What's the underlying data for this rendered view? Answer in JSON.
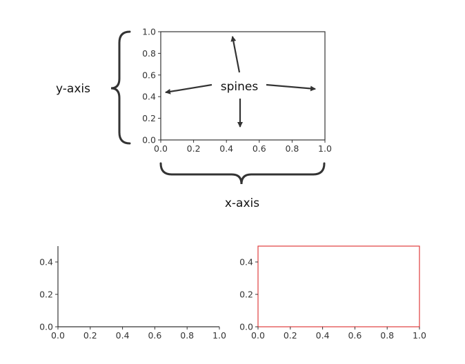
{
  "annotations": {
    "y_axis_label": "y-axis",
    "x_axis_label": "x-axis",
    "spines_label": "spines"
  },
  "top_plot": {
    "x_ticks": [
      "0.0",
      "0.2",
      "0.4",
      "0.6",
      "0.8",
      "1.0"
    ],
    "y_ticks": [
      "0.0",
      "0.2",
      "0.4",
      "0.6",
      "0.8",
      "1.0"
    ]
  },
  "bottom_left_plot": {
    "x_ticks": [
      "0.0",
      "0.2",
      "0.4",
      "0.6",
      "0.8",
      "1.0"
    ],
    "y_ticks": [
      "0.0",
      "0.2",
      "0.4"
    ]
  },
  "bottom_right_plot": {
    "x_ticks": [
      "0.0",
      "0.2",
      "0.4",
      "0.6",
      "0.8",
      "1.0"
    ],
    "y_ticks": [
      "0.0",
      "0.2",
      "0.4"
    ],
    "spine_color": "#e03c3c"
  },
  "colors": {
    "axis": "#333333",
    "annotation": "#333333"
  }
}
